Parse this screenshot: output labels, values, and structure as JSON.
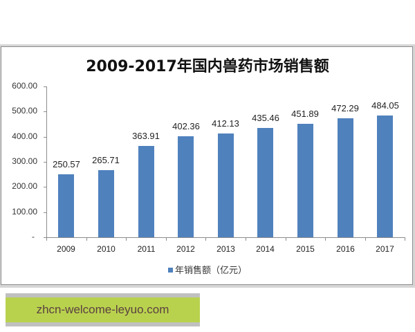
{
  "chart_data": {
    "type": "bar",
    "title": "2009-2017年国内兽药市场销售额",
    "categories": [
      "2009",
      "2010",
      "2011",
      "2012",
      "2013",
      "2014",
      "2015",
      "2016",
      "2017"
    ],
    "series": [
      {
        "name": "年销售额（亿元）",
        "values": [
          250.57,
          265.71,
          363.91,
          402.36,
          412.13,
          435.46,
          451.89,
          472.29,
          484.05
        ],
        "color": "#4f81bd"
      }
    ],
    "value_labels": [
      "250.57",
      "265.71",
      "363.91",
      "402.36",
      "412.13",
      "435.46",
      "451.89",
      "472.29",
      "484.05"
    ],
    "xlabel": "",
    "ylabel": "",
    "ylim": [
      0,
      600
    ],
    "yticks": [
      "600.00",
      "500.00",
      "400.00",
      "300.00",
      "200.00",
      "100.00",
      "-"
    ],
    "grid": false,
    "legend_position": "bottom"
  },
  "legend": {
    "label": "年销售额（亿元）"
  },
  "watermark": {
    "text": "zhcn-welcome-leyuo.com",
    "bg": "#b9d24e"
  }
}
